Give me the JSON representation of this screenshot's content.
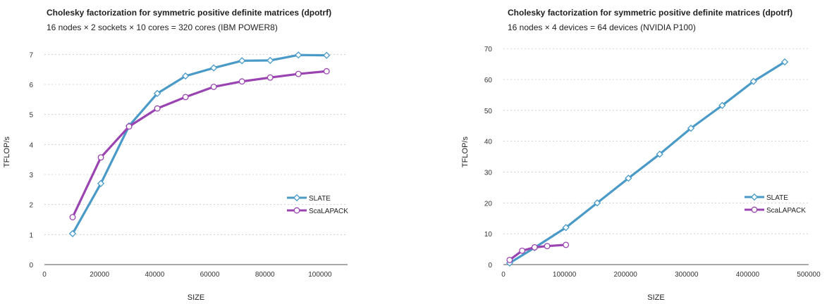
{
  "chart_data": [
    {
      "type": "line",
      "title": "Cholesky factorization for symmetric positive definite matrices (dpotrf)",
      "subtitle": "16 nodes × 2 sockets × 10 cores = 320 cores (IBM POWER8)",
      "xlabel": "SIZE",
      "ylabel": "TFLOP/s",
      "xlim": [
        0,
        110000
      ],
      "ylim": [
        0,
        7.5
      ],
      "xticks": [
        0,
        20000,
        40000,
        60000,
        80000,
        100000
      ],
      "yticks": [
        0,
        1,
        2,
        3,
        4,
        5,
        6,
        7
      ],
      "grid": "horizontal-dashed",
      "legend_position": "right",
      "series": [
        {
          "name": "SLATE",
          "color": "#4a9ac8",
          "marker": "diamond",
          "x": [
            10240,
            20480,
            30720,
            40960,
            51200,
            61440,
            71680,
            81920,
            92160,
            102400
          ],
          "y": [
            1.03,
            2.7,
            4.62,
            5.7,
            6.28,
            6.55,
            6.79,
            6.8,
            6.98,
            6.97
          ]
        },
        {
          "name": "ScaLAPACK",
          "color": "#9a44b2",
          "marker": "circle",
          "x": [
            10240,
            20480,
            30720,
            40960,
            51200,
            61440,
            71680,
            81920,
            92160,
            102400
          ],
          "y": [
            1.58,
            3.57,
            4.6,
            5.2,
            5.58,
            5.92,
            6.1,
            6.23,
            6.35,
            6.44
          ]
        }
      ]
    },
    {
      "type": "line",
      "title": "Cholesky factorization for symmetric positive definite matrices (dpotrf)",
      "subtitle": "16 nodes × 4 devices = 64 devices (NVIDIA P100)",
      "xlabel": "SIZE",
      "ylabel": "TFLOP/s",
      "xlim": [
        0,
        500000
      ],
      "ylim": [
        0,
        73
      ],
      "xticks": [
        0,
        100000,
        200000,
        300000,
        400000,
        500000
      ],
      "yticks": [
        0,
        10,
        20,
        30,
        40,
        50,
        60,
        70
      ],
      "grid": "horizontal-dashed",
      "legend_position": "right",
      "series": [
        {
          "name": "SLATE",
          "color": "#4a9ac8",
          "marker": "diamond",
          "x": [
            10240,
            51200,
            102400,
            153600,
            204800,
            256000,
            307200,
            358400,
            409600,
            460800
          ],
          "y": [
            0.5,
            5.5,
            12.0,
            20.0,
            28.0,
            35.8,
            44.2,
            51.6,
            59.4,
            65.7
          ]
        },
        {
          "name": "ScaLAPACK",
          "color": "#9a44b2",
          "marker": "circle",
          "x": [
            10240,
            30720,
            51200,
            71680,
            102400
          ],
          "y": [
            1.5,
            4.5,
            5.6,
            6.0,
            6.4
          ]
        }
      ]
    }
  ]
}
